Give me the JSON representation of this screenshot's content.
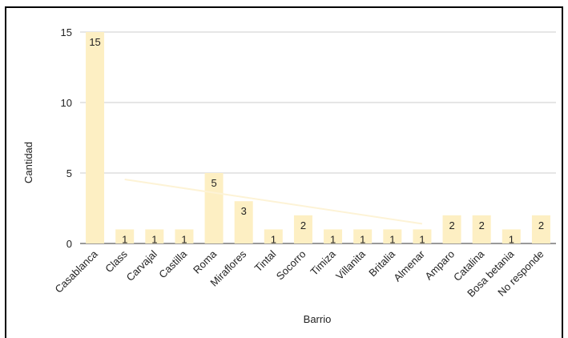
{
  "chart_data": {
    "type": "bar",
    "xlabel": "Barrio",
    "ylabel": "Cantidad",
    "ylim": [
      0,
      15
    ],
    "yticks": [
      0,
      5,
      10,
      15
    ],
    "grid": true,
    "bar_color": "#fdefc3",
    "trendline_color": "#fdf3d6",
    "trendline": true,
    "categories": [
      "Casablanca",
      "Class",
      "Carvajal",
      "Castilla",
      "Roma",
      "Miraflores",
      "Tintal",
      "Socorro",
      "Timiza",
      "Villanita",
      "Britalia",
      "Almenar",
      "Amparo",
      "Catalina",
      "Bosa betania",
      "No  responde"
    ],
    "values": [
      15,
      1,
      1,
      1,
      5,
      3,
      1,
      2,
      1,
      1,
      1,
      1,
      2,
      2,
      1,
      2
    ]
  }
}
